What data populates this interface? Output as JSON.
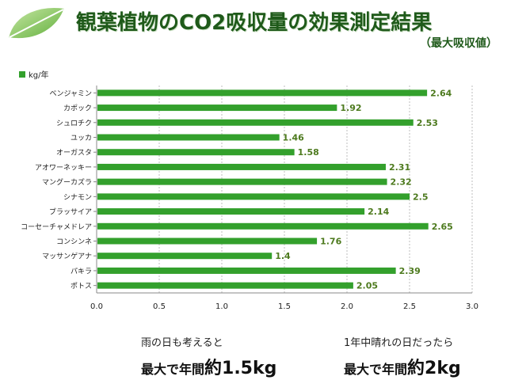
{
  "header": {
    "title": "観葉植物のCO2吸収量の効果測定結果",
    "subtitle": "（最大吸収値）"
  },
  "chart_data": {
    "type": "bar",
    "orientation": "horizontal",
    "title": "観葉植物のCO2吸収量の効果測定結果",
    "subtitle": "（最大吸収値）",
    "xlabel": "",
    "ylabel": "",
    "xlim": [
      0,
      3.0
    ],
    "x_ticks": [
      "0.0",
      "0.5",
      "1.0",
      "1.5",
      "2.0",
      "2.5",
      "3.0"
    ],
    "grid": "vertical-dashed",
    "legend_position": "top-left",
    "bar_color": "#33a02c",
    "series": [
      {
        "name": "kg/年",
        "categories": [
          "ベンジャミン",
          "カポック",
          "シュロチク",
          "ユッカ",
          "オーガスタ",
          "アオワーネッキー",
          "マングーカズラ",
          "シナモン",
          "ブラッサイア",
          "コーセーチャメドレア",
          "コンシンネ",
          "マッサンゲアナ",
          "パキラ",
          "ポトス"
        ],
        "values": [
          2.64,
          1.92,
          2.53,
          1.46,
          1.58,
          2.31,
          2.32,
          2.5,
          2.14,
          2.65,
          1.76,
          1.4,
          2.39,
          2.05
        ],
        "labels": [
          "2.64",
          "1.92",
          "2.53",
          "1.46",
          "1.58",
          "2.31",
          "2.32",
          "2.5",
          "2.14",
          "2.65",
          "1.76",
          "1.4",
          "2.39",
          "2.05"
        ]
      }
    ]
  },
  "notes": {
    "left": {
      "line1": "雨の日も考えると",
      "prefix": "最大で年間",
      "big": "約1.5kg"
    },
    "right": {
      "line1": "1年中晴れの日だったら",
      "prefix": "最大で年間",
      "big": "約2kg"
    }
  }
}
